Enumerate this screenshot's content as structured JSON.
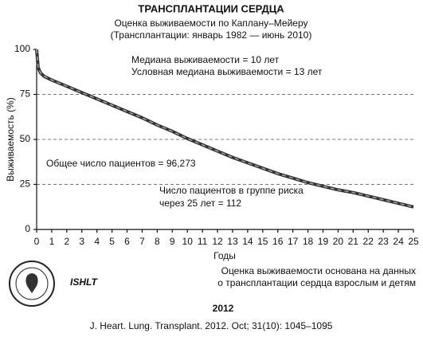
{
  "chart_data": {
    "type": "line",
    "title": "ТРАНСПЛАНТАЦИИ СЕРДЦА",
    "subtitle": [
      "Оценка выживаемости по Каплану–Мейеру",
      "(Трансплантации: январь 1982 — июнь 2010)"
    ],
    "x_label": "Годы",
    "y_label": "Выживаемость (%)",
    "x": [
      0,
      0.1,
      0.25,
      0.5,
      1,
      2,
      3,
      4,
      5,
      6,
      7,
      8,
      9,
      10,
      11,
      12,
      13,
      14,
      15,
      16,
      17,
      18,
      19,
      20,
      21,
      22,
      23,
      24,
      25
    ],
    "series": [
      {
        "color": "#333333",
        "values": [
          100,
          90,
          87,
          85,
          83,
          79.5,
          76,
          72.5,
          69,
          65.5,
          62,
          58,
          54.5,
          50.5,
          47,
          43.5,
          40,
          37,
          34,
          31,
          28.5,
          26,
          24,
          22,
          20.5,
          18.5,
          16.5,
          14.5,
          12.5
        ]
      }
    ],
    "xlim": [
      0,
      25
    ],
    "ylim": [
      0,
      100
    ],
    "xticks": [
      0,
      1,
      2,
      3,
      4,
      5,
      6,
      7,
      8,
      9,
      10,
      11,
      12,
      13,
      14,
      15,
      16,
      17,
      18,
      19,
      20,
      21,
      22,
      23,
      24,
      25
    ],
    "yticks": [
      0,
      25,
      50,
      75,
      100
    ],
    "grid": true,
    "annotations": [
      "Медиана выживаемости = 10 лет",
      "Условная медиана выживаемости = 13 лет",
      "Общее число пациентов = 96,273",
      "Число пациентов в группе риска",
      "через 25 лет = 112"
    ],
    "note": [
      "Оценка выживаемости основана на данных",
      "о трансплантации сердца взрослым и детям"
    ],
    "organization": "ISHLT",
    "year": "2012",
    "citation": "J. Heart. Lung. Transplant. 2012. Oct; 31(10): 1045–1095"
  }
}
